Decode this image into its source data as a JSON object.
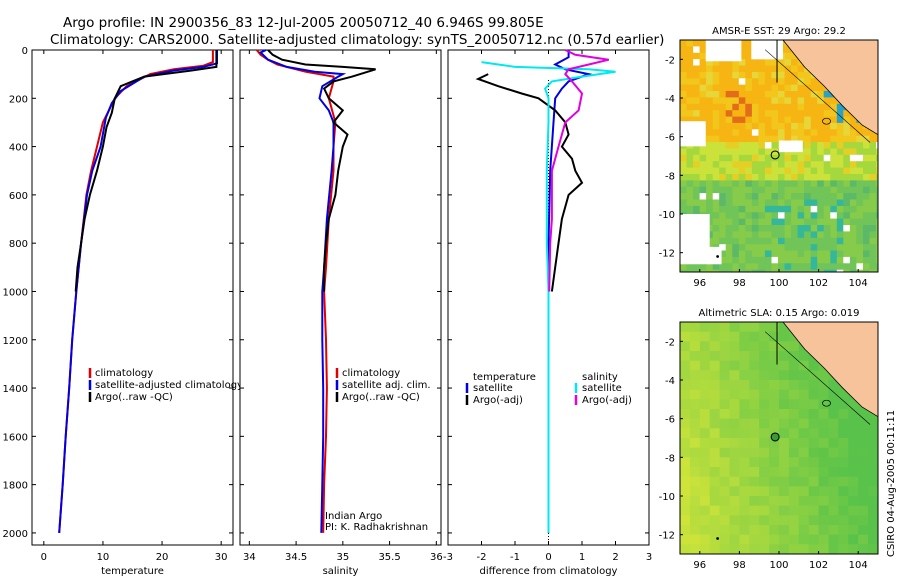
{
  "title_line1": "Argo profile: IN 2900356_83 12-Jul-2005 20050712_40 6.946S 99.805E",
  "title_line2": "Climatology: CARS2000. Satellite-adjusted climatology: synTS_20050712.nc (0.57d earlier)",
  "credit_vertical": "CSIRO 04-Aug-2005 00:11:11",
  "colors": {
    "climatology": "#e00000",
    "satellite": "#0000e0",
    "argo": "#000000",
    "cyan": "#00e8f0",
    "magenta": "#e000e0",
    "land": "#f7c39a"
  },
  "chart_data": [
    {
      "type": "line",
      "name": "temperature",
      "xlabel": "temperature",
      "xlim": [
        -2,
        32
      ],
      "ylim": [
        0,
        2050
      ],
      "yreversed": true,
      "xticks": [
        0,
        10,
        20,
        30
      ],
      "xtick_labels": [
        "0",
        "10",
        "20",
        "30"
      ],
      "yticks": [
        0,
        200,
        400,
        600,
        800,
        1000,
        1200,
        1400,
        1600,
        1800,
        2000
      ],
      "ytick_labels": [
        "0",
        "200",
        "400",
        "600",
        "800",
        "1000",
        "1200",
        "1400",
        "1600",
        "1800",
        "2000"
      ],
      "legend": [
        "climatology",
        "satellite-adjusted climatology",
        "Argo(..raw -QC)"
      ],
      "series": [
        {
          "name": "climatology",
          "color": "#e00000",
          "points": [
            [
              28.6,
              0
            ],
            [
              28.6,
              50
            ],
            [
              27,
              65
            ],
            [
              22,
              80
            ],
            [
              18,
              100
            ],
            [
              14,
              150
            ],
            [
              12,
              200
            ],
            [
              11,
              250
            ],
            [
              10,
              300
            ],
            [
              9,
              400
            ],
            [
              8,
              500
            ],
            [
              7.2,
              600
            ],
            [
              6.3,
              800
            ],
            [
              5.5,
              1000
            ],
            [
              4.8,
              1200
            ],
            [
              4.3,
              1400
            ],
            [
              3.7,
              1600
            ],
            [
              3.2,
              1800
            ],
            [
              2.6,
              2000
            ]
          ]
        },
        {
          "name": "satellite",
          "color": "#0000e0",
          "points": [
            [
              29.3,
              0
            ],
            [
              29.3,
              55
            ],
            [
              27,
              70
            ],
            [
              22,
              85
            ],
            [
              17,
              110
            ],
            [
              13,
              170
            ],
            [
              11.5,
              220
            ],
            [
              10.5,
              280
            ],
            [
              9.6,
              400
            ],
            [
              8.2,
              500
            ],
            [
              7.3,
              600
            ],
            [
              6.3,
              800
            ],
            [
              5.5,
              1000
            ],
            [
              4.8,
              1200
            ],
            [
              4.3,
              1400
            ],
            [
              3.7,
              1600
            ],
            [
              3.2,
              1800
            ],
            [
              2.6,
              2000
            ]
          ]
        },
        {
          "name": "Argo",
          "color": "#000000",
          "points": [
            [
              29.2,
              0
            ],
            [
              29.2,
              70
            ],
            [
              25,
              85
            ],
            [
              17,
              110
            ],
            [
              13,
              150
            ],
            [
              12,
              200
            ],
            [
              11.5,
              260
            ],
            [
              10.6,
              320
            ],
            [
              10,
              400
            ],
            [
              9,
              500
            ],
            [
              7.8,
              600
            ],
            [
              6.9,
              700
            ],
            [
              6.3,
              800
            ],
            [
              5.7,
              900
            ],
            [
              5.4,
              1000
            ]
          ]
        }
      ]
    },
    {
      "type": "line",
      "name": "salinity",
      "xlabel": "salinity",
      "xlim": [
        33.9,
        36.05
      ],
      "ylim": [
        0,
        2050
      ],
      "yreversed": true,
      "xticks": [
        34,
        34.5,
        35,
        35.5,
        36
      ],
      "xtick_labels": [
        "34",
        "34.5",
        "35",
        "35.5",
        "36"
      ],
      "legend": [
        "climatology",
        "satellite adj. clim.",
        "Argo(..raw -QC)"
      ],
      "annotations": [
        "Indian Argo",
        "PI: K. Radhakrishnan"
      ],
      "series": [
        {
          "name": "climatology",
          "color": "#e00000",
          "points": [
            [
              34.08,
              0
            ],
            [
              34.12,
              20
            ],
            [
              34.2,
              40
            ],
            [
              34.3,
              60
            ],
            [
              34.6,
              90
            ],
            [
              34.9,
              110
            ],
            [
              34.9,
              130
            ],
            [
              34.85,
              200
            ],
            [
              34.92,
              300
            ],
            [
              34.9,
              400
            ],
            [
              34.9,
              500
            ],
            [
              34.85,
              700
            ],
            [
              34.82,
              900
            ],
            [
              34.8,
              1000
            ],
            [
              34.82,
              1200
            ],
            [
              34.83,
              1400
            ],
            [
              34.82,
              1600
            ],
            [
              34.8,
              1800
            ],
            [
              34.79,
              2000
            ]
          ]
        },
        {
          "name": "satellite",
          "color": "#0000e0",
          "points": [
            [
              34.18,
              0
            ],
            [
              34.12,
              10
            ],
            [
              34.2,
              40
            ],
            [
              34.4,
              70
            ],
            [
              34.7,
              90
            ],
            [
              35.0,
              100
            ],
            [
              34.95,
              110
            ],
            [
              34.78,
              150
            ],
            [
              34.75,
              200
            ],
            [
              34.85,
              250
            ],
            [
              34.9,
              300
            ],
            [
              34.9,
              400
            ],
            [
              34.88,
              500
            ],
            [
              34.83,
              700
            ],
            [
              34.8,
              900
            ],
            [
              34.78,
              1000
            ],
            [
              34.78,
              1200
            ],
            [
              34.79,
              1400
            ],
            [
              34.79,
              1600
            ],
            [
              34.78,
              1800
            ],
            [
              34.77,
              2000
            ]
          ]
        },
        {
          "name": "Argo",
          "color": "#000000",
          "points": [
            [
              34.2,
              0
            ],
            [
              34.25,
              20
            ],
            [
              34.35,
              40
            ],
            [
              34.6,
              60
            ],
            [
              35.0,
              70
            ],
            [
              35.35,
              80
            ],
            [
              35.1,
              110
            ],
            [
              34.9,
              130
            ],
            [
              34.8,
              160
            ],
            [
              34.85,
              200
            ],
            [
              35.0,
              250
            ],
            [
              34.9,
              300
            ],
            [
              35.05,
              350
            ],
            [
              35.0,
              400
            ],
            [
              34.95,
              500
            ],
            [
              34.92,
              600
            ],
            [
              34.85,
              700
            ],
            [
              34.82,
              800
            ],
            [
              34.8,
              900
            ],
            [
              34.8,
              1000
            ]
          ]
        }
      ]
    },
    {
      "type": "line",
      "name": "difference",
      "xlabel": "difference from climatology",
      "xlim": [
        -3,
        3
      ],
      "ylim": [
        0,
        2050
      ],
      "yreversed": true,
      "xticks": [
        -3,
        -2,
        -1,
        0,
        1,
        2,
        3
      ],
      "xtick_labels": [
        "-3",
        "-2",
        "-1",
        "0",
        "1",
        "2",
        "3"
      ],
      "legend": [
        "temperature",
        "satellite",
        "Argo(-adj)",
        "salinity",
        "satellite",
        "Argo(-adj)"
      ],
      "series": [
        {
          "name": "temp satellite",
          "color": "#0000e0",
          "points": [
            [
              0.6,
              0
            ],
            [
              0.6,
              30
            ],
            [
              0.2,
              60
            ],
            [
              0.5,
              80
            ],
            [
              1.2,
              100
            ],
            [
              0.6,
              130
            ],
            [
              0.4,
              160
            ],
            [
              0.2,
              200
            ],
            [
              0.15,
              300
            ],
            [
              0.05,
              500
            ],
            [
              0,
              800
            ],
            [
              0,
              2000
            ]
          ]
        },
        {
          "name": "temp Argo(-adj)",
          "color": "#000000",
          "points": [
            [
              -1.8,
              100
            ],
            [
              -2.1,
              120
            ],
            [
              -1.5,
              150
            ],
            [
              -0.8,
              180
            ],
            [
              -0.3,
              200
            ],
            [
              0.2,
              250
            ],
            [
              0.5,
              300
            ],
            [
              0.6,
              350
            ],
            [
              0.4,
              400
            ],
            [
              0.7,
              450
            ],
            [
              0.8,
              500
            ],
            [
              1.0,
              550
            ],
            [
              0.6,
              600
            ],
            [
              0.4,
              700
            ],
            [
              0.3,
              800
            ],
            [
              0.2,
              900
            ],
            [
              0.1,
              1000
            ]
          ]
        },
        {
          "name": "sal satellite",
          "color": "#00e8f0",
          "points": [
            [
              -2.0,
              50
            ],
            [
              -1.5,
              60
            ],
            [
              -1.0,
              70
            ],
            [
              1.2,
              80
            ],
            [
              2.0,
              90
            ],
            [
              1.0,
              110
            ],
            [
              0.1,
              130
            ],
            [
              -0.1,
              160
            ],
            [
              0,
              200
            ],
            [
              0,
              300
            ],
            [
              -0.05,
              500
            ],
            [
              -0.05,
              800
            ],
            [
              0,
              1000
            ],
            [
              0,
              1200
            ],
            [
              0,
              2000
            ]
          ]
        },
        {
          "name": "sal Argo(-adj)",
          "color": "#e000e0",
          "points": [
            [
              0.5,
              0
            ],
            [
              0.8,
              20
            ],
            [
              1.8,
              40
            ],
            [
              1.2,
              60
            ],
            [
              0.6,
              80
            ],
            [
              0.5,
              100
            ],
            [
              0.7,
              130
            ],
            [
              1.0,
              180
            ],
            [
              0.9,
              250
            ],
            [
              0.5,
              300
            ],
            [
              0.3,
              400
            ],
            [
              0.2,
              450
            ],
            [
              0.1,
              500
            ],
            [
              0.1,
              700
            ],
            [
              0.05,
              800
            ],
            [
              0.02,
              1000
            ]
          ]
        }
      ]
    },
    {
      "type": "heatmap",
      "name": "AMSR-E SST map",
      "title": "AMSR-E SST: 29  Argo: 29.2",
      "xlim": [
        95,
        105
      ],
      "ylim": [
        -13,
        -1
      ],
      "xticks": [
        96,
        98,
        100,
        102,
        104
      ],
      "xtick_labels": [
        "96",
        "98",
        "100",
        "102",
        "104"
      ],
      "yticks": [
        -2,
        -4,
        -6,
        -8,
        -10,
        -12
      ],
      "ytick_labels": [
        "-2",
        "-4",
        "-6",
        "-8",
        "-10",
        "-12"
      ],
      "argo_location": [
        99.805,
        -6.946
      ]
    },
    {
      "type": "heatmap",
      "name": "Altimetric SLA map",
      "title": "Altimetric SLA: 0.15  Argo: 0.019",
      "xlim": [
        95,
        105
      ],
      "ylim": [
        -13,
        -1
      ],
      "xticks": [
        96,
        98,
        100,
        102,
        104
      ],
      "xtick_labels": [
        "96",
        "98",
        "100",
        "102",
        "104"
      ],
      "yticks": [
        -2,
        -4,
        -6,
        -8,
        -10,
        -12
      ],
      "ytick_labels": [
        "-2",
        "-4",
        "-6",
        "-8",
        "-10",
        "-12"
      ],
      "argo_location": [
        99.805,
        -6.946
      ]
    }
  ]
}
